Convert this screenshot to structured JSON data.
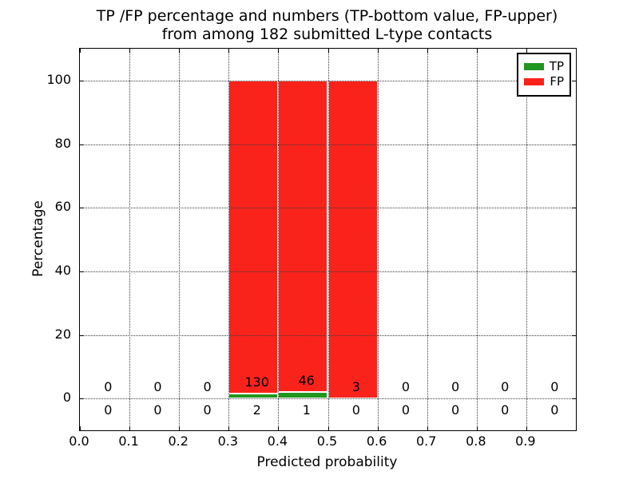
{
  "title": {
    "line1": "TP /FP percentage and numbers (TP-bottom value, FP-upper)",
    "line2": "from among 182 submitted L-type contacts"
  },
  "axes": {
    "xlabel": "Predicted probability",
    "ylabel": "Percentage"
  },
  "legend": {
    "items": [
      {
        "label": "TP",
        "color": "#22961e"
      },
      {
        "label": "FP",
        "color": "#fa231c"
      }
    ]
  },
  "chart_data": {
    "type": "bar",
    "stacked": true,
    "title": "TP /FP percentage and numbers (TP-bottom value, FP-upper) from among 182 submitted L-type contacts",
    "xlabel": "Predicted probability",
    "ylabel": "Percentage",
    "total_submitted": 182,
    "xlim": [
      0.0,
      1.0
    ],
    "ylim": [
      -10,
      110
    ],
    "xticks": [
      0.0,
      0.1,
      0.2,
      0.3,
      0.4,
      0.5,
      0.6,
      0.7,
      0.8,
      0.9
    ],
    "xtick_labels": [
      "0.0",
      "0.1",
      "0.2",
      "0.3",
      "0.4",
      "0.5",
      "0.6",
      "0.7",
      "0.8",
      "0.9"
    ],
    "yticks": [
      0,
      20,
      40,
      60,
      80,
      100
    ],
    "ytick_labels": [
      "0",
      "20",
      "40",
      "60",
      "80",
      "100"
    ],
    "grid": "dotted",
    "legend_position": "upper right",
    "bin_width": 0.1,
    "series_colors": {
      "TP": "#22961e",
      "FP": "#fa231c"
    },
    "bins": [
      {
        "range": [
          0.0,
          0.1
        ],
        "tp": 0,
        "fp": 0
      },
      {
        "range": [
          0.1,
          0.2
        ],
        "tp": 0,
        "fp": 0
      },
      {
        "range": [
          0.2,
          0.3
        ],
        "tp": 0,
        "fp": 0
      },
      {
        "range": [
          0.3,
          0.4
        ],
        "tp": 2,
        "fp": 130,
        "tp_pct": 1.5,
        "fp_pct": 98.5
      },
      {
        "range": [
          0.4,
          0.5
        ],
        "tp": 1,
        "fp": 46,
        "tp_pct": 2.1,
        "fp_pct": 97.9
      },
      {
        "range": [
          0.5,
          0.6
        ],
        "tp": 0,
        "fp": 3,
        "tp_pct": 0.0,
        "fp_pct": 100.0
      },
      {
        "range": [
          0.6,
          0.7
        ],
        "tp": 0,
        "fp": 0
      },
      {
        "range": [
          0.7,
          0.8
        ],
        "tp": 0,
        "fp": 0
      },
      {
        "range": [
          0.8,
          0.9
        ],
        "tp": 0,
        "fp": 0
      },
      {
        "range": [
          0.9,
          1.0
        ],
        "tp": 0,
        "fp": 0
      }
    ]
  }
}
